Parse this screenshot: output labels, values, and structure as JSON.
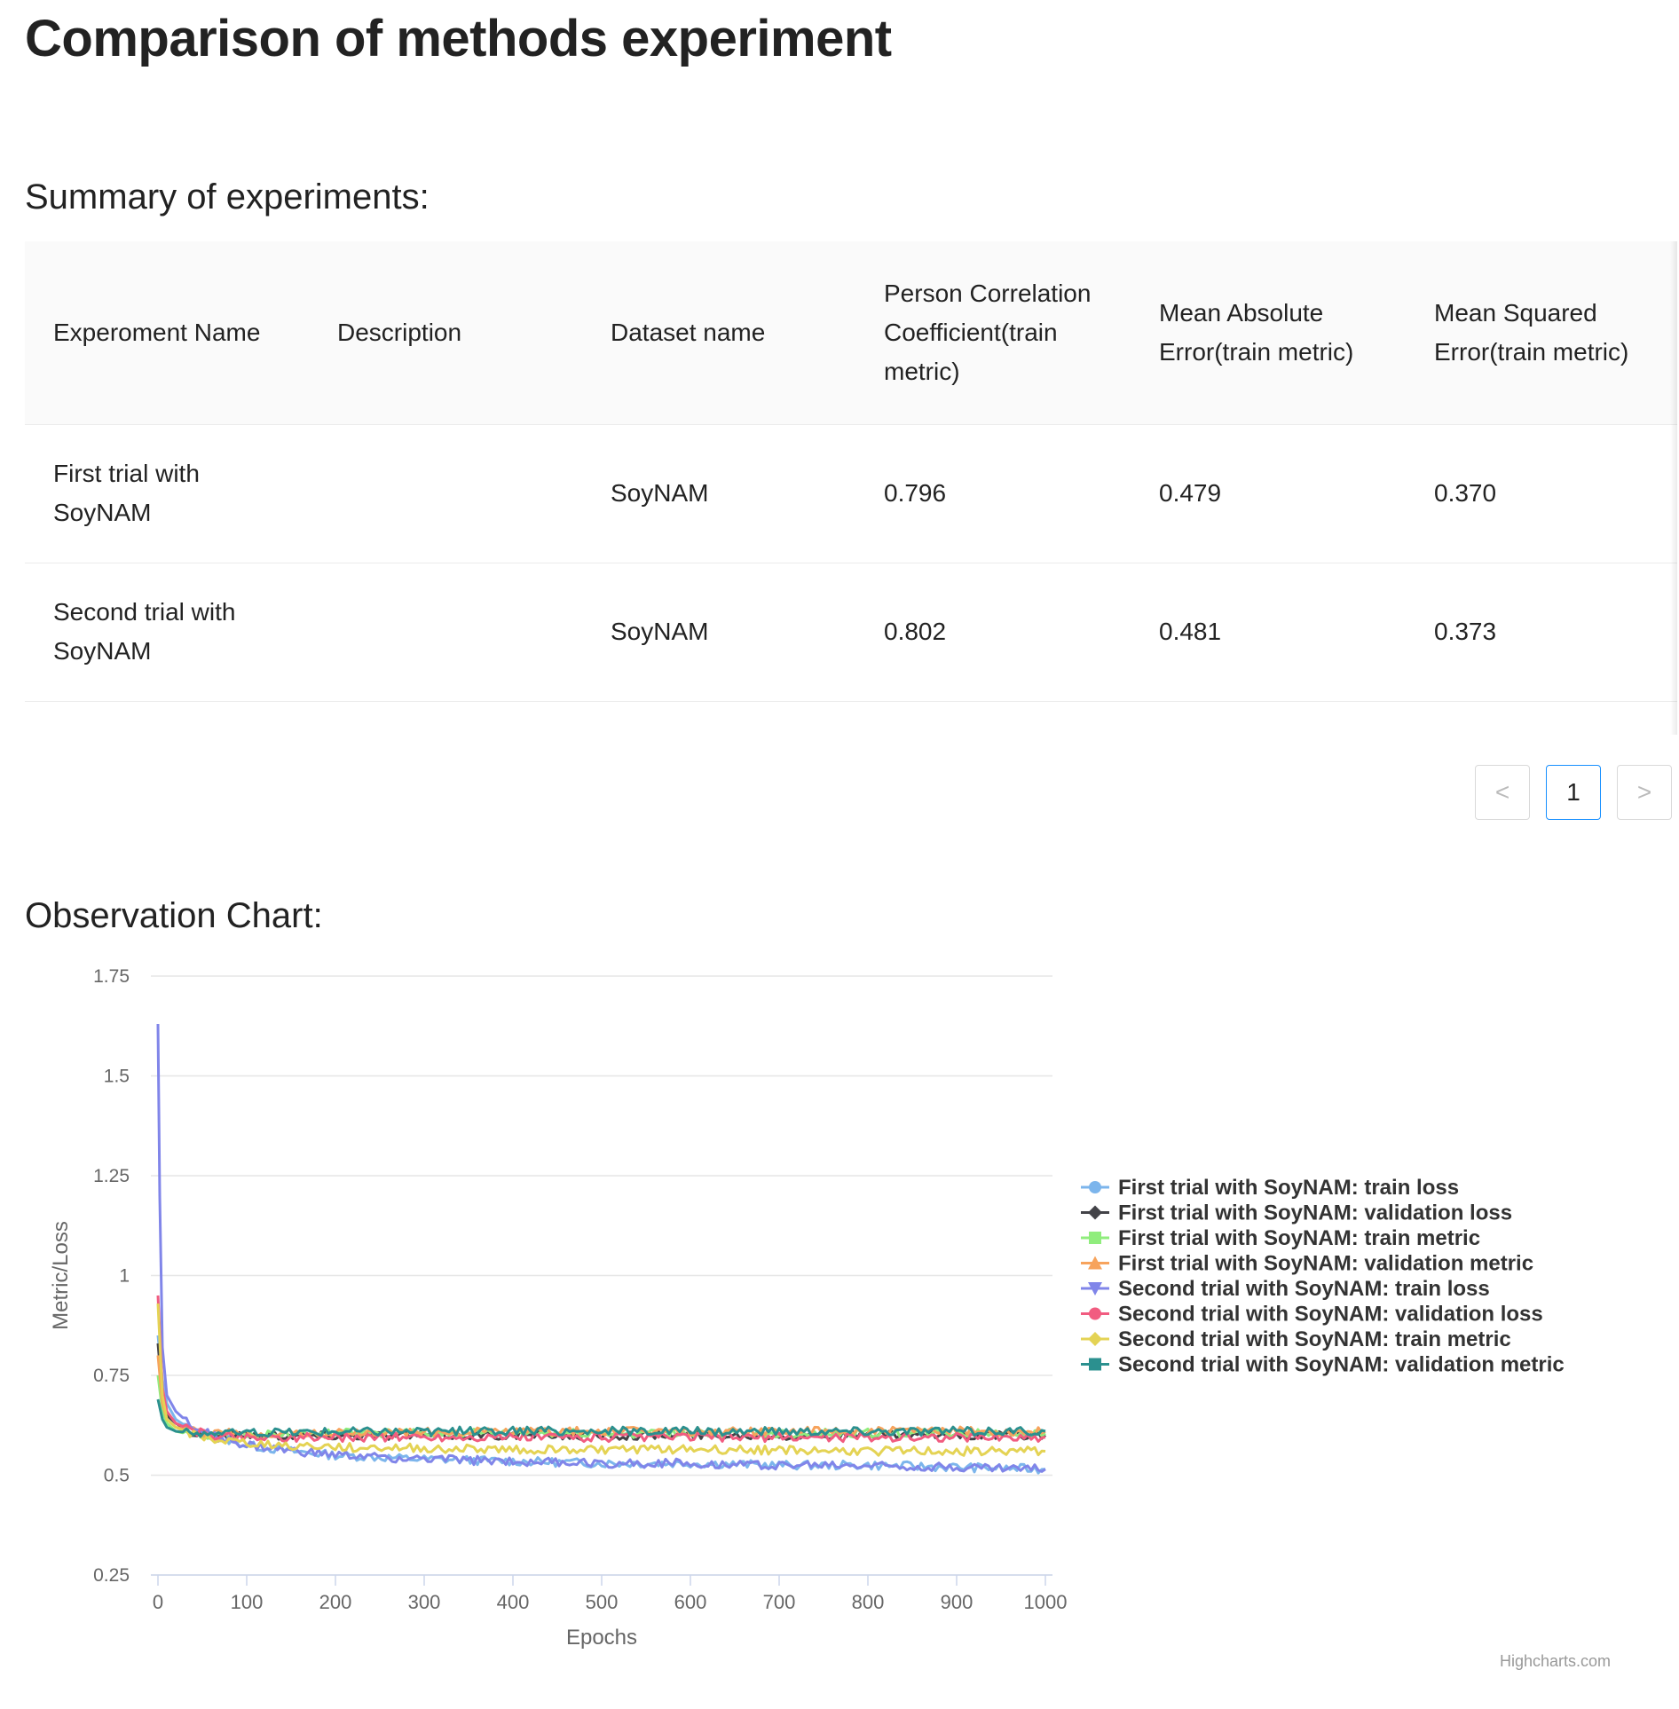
{
  "page": {
    "title": "Comparison of methods experiment"
  },
  "summary": {
    "title": "Summary of experiments:",
    "columns": [
      "Experoment Name",
      "Description",
      "Dataset name",
      "Person Correlation Coefficient(train metric)",
      "Mean Absolute Error(train metric)",
      "Mean Squared Error(train metric)"
    ],
    "rows": [
      {
        "name": "First trial with SoyNAM",
        "description": "",
        "dataset": "SoyNAM",
        "pcc": "0.796",
        "mae": "0.479",
        "mse": "0.370"
      },
      {
        "name": "Second trial with SoyNAM",
        "description": "",
        "dataset": "SoyNAM",
        "pcc": "0.802",
        "mae": "0.481",
        "mse": "0.373"
      }
    ]
  },
  "pagination": {
    "prev": "<",
    "current": "1",
    "next": ">"
  },
  "observation": {
    "title": "Observation Chart:",
    "credit": "Highcharts.com"
  },
  "chart_data": {
    "type": "line",
    "title": "",
    "xlabel": "Epochs",
    "ylabel": "Metric/Loss",
    "xlim": [
      0,
      1000
    ],
    "ylim": [
      0.25,
      1.75
    ],
    "xticks": [
      0,
      100,
      200,
      300,
      400,
      500,
      600,
      700,
      800,
      900,
      1000
    ],
    "yticks": [
      0.25,
      0.5,
      0.75,
      1,
      1.25,
      1.5,
      1.75
    ],
    "ytick_labels": [
      "0.25",
      "0.5",
      "0.75",
      "1",
      "1.25",
      "1.5",
      "1.75"
    ],
    "grid": true,
    "legend_position": "right",
    "series": [
      {
        "name": "First trial with SoyNAM: train loss",
        "color": "#7cb5ec",
        "marker": "circle",
        "x": [
          0,
          5,
          10,
          20,
          40,
          60,
          100,
          150,
          200,
          300,
          400,
          500,
          600,
          700,
          800,
          900,
          1000
        ],
        "y": [
          0.85,
          0.74,
          0.68,
          0.64,
          0.61,
          0.6,
          0.575,
          0.56,
          0.55,
          0.54,
          0.535,
          0.53,
          0.53,
          0.525,
          0.525,
          0.52,
          0.515
        ]
      },
      {
        "name": "First trial with SoyNAM: validation loss",
        "color": "#434348",
        "marker": "diamond",
        "x": [
          0,
          5,
          10,
          20,
          40,
          60,
          100,
          200,
          400,
          600,
          800,
          1000
        ],
        "y": [
          0.83,
          0.7,
          0.65,
          0.63,
          0.605,
          0.6,
          0.6,
          0.6,
          0.6,
          0.6,
          0.6,
          0.6
        ]
      },
      {
        "name": "First trial with SoyNAM: train metric",
        "color": "#90ed7d",
        "marker": "square",
        "x": [
          0,
          5,
          10,
          20,
          40,
          60,
          100,
          200,
          400,
          600,
          800,
          1000
        ],
        "y": [
          0.75,
          0.66,
          0.63,
          0.61,
          0.6,
          0.6,
          0.6,
          0.605,
          0.605,
          0.605,
          0.605,
          0.605
        ]
      },
      {
        "name": "First trial with SoyNAM: validation metric",
        "color": "#f7a35c",
        "marker": "triangle",
        "x": [
          0,
          5,
          10,
          20,
          40,
          60,
          100,
          200,
          400,
          600,
          800,
          1000
        ],
        "y": [
          0.8,
          0.68,
          0.64,
          0.62,
          0.61,
          0.605,
          0.605,
          0.605,
          0.61,
          0.61,
          0.61,
          0.61
        ]
      },
      {
        "name": "Second trial with SoyNAM: train loss",
        "color": "#8085e9",
        "marker": "triangle-down",
        "x": [
          0,
          2,
          5,
          10,
          20,
          40,
          60,
          100,
          150,
          200,
          300,
          400,
          500,
          600,
          700,
          800,
          900,
          1000
        ],
        "y": [
          1.63,
          1.2,
          0.82,
          0.7,
          0.66,
          0.62,
          0.6,
          0.575,
          0.56,
          0.55,
          0.54,
          0.535,
          0.53,
          0.53,
          0.525,
          0.525,
          0.52,
          0.515
        ]
      },
      {
        "name": "Second trial with SoyNAM: validation loss",
        "color": "#f15c80",
        "marker": "circle",
        "x": [
          0,
          5,
          10,
          20,
          40,
          60,
          100,
          200,
          400,
          600,
          800,
          1000
        ],
        "y": [
          0.95,
          0.72,
          0.66,
          0.63,
          0.61,
          0.6,
          0.595,
          0.595,
          0.595,
          0.595,
          0.595,
          0.595
        ]
      },
      {
        "name": "Second trial with SoyNAM: train metric",
        "color": "#e4d354",
        "marker": "diamond",
        "x": [
          0,
          5,
          10,
          20,
          40,
          60,
          100,
          200,
          400,
          600,
          800,
          1000
        ],
        "y": [
          0.93,
          0.7,
          0.64,
          0.62,
          0.6,
          0.59,
          0.58,
          0.57,
          0.565,
          0.565,
          0.56,
          0.56
        ]
      },
      {
        "name": "Second trial with SoyNAM: validation metric",
        "color": "#2b908f",
        "marker": "square",
        "x": [
          0,
          5,
          10,
          20,
          40,
          60,
          100,
          200,
          400,
          600,
          800,
          1000
        ],
        "y": [
          0.69,
          0.64,
          0.62,
          0.61,
          0.605,
          0.605,
          0.605,
          0.61,
          0.61,
          0.61,
          0.61,
          0.61
        ]
      }
    ]
  }
}
